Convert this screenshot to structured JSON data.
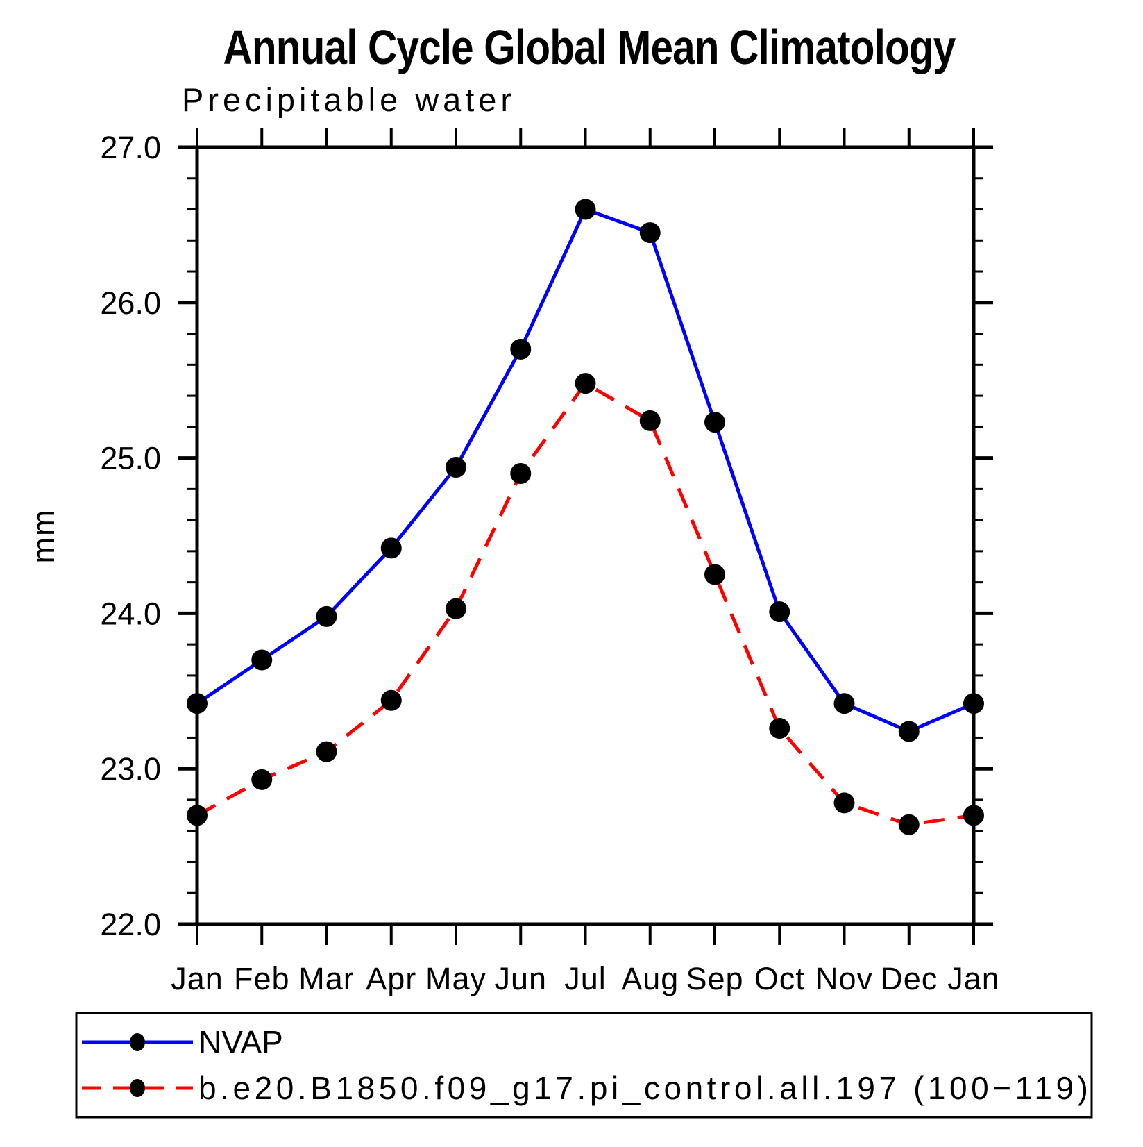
{
  "chart_data": {
    "type": "line",
    "title": "Annual Cycle Global Mean Climatology",
    "subtitle": "Precipitable water",
    "ylabel": "mm",
    "xlabel": "",
    "ylim": [
      22.0,
      27.0
    ],
    "ytick_step": 1.0,
    "yminor_step": 0.2,
    "ytick_labels": [
      "22.0",
      "23.0",
      "24.0",
      "25.0",
      "26.0",
      "27.0"
    ],
    "categories": [
      "Jan",
      "Feb",
      "Mar",
      "Apr",
      "May",
      "Jun",
      "Jul",
      "Aug",
      "Sep",
      "Oct",
      "Nov",
      "Dec",
      "Jan"
    ],
    "grid": false,
    "legend_position": "bottom",
    "marker_color": "#000000",
    "axis_color": "#000000",
    "background_color": "#ffffff",
    "series": [
      {
        "name": "NVAP",
        "color": "#0000ff",
        "line_style": "solid",
        "values": [
          23.42,
          23.7,
          23.98,
          24.42,
          24.94,
          25.7,
          26.6,
          26.45,
          25.23,
          24.01,
          23.42,
          23.24,
          23.42
        ]
      },
      {
        "name": "b.e20.B1850.f09_g17.pi_control.all.197 (100−119)",
        "color": "#ff0000",
        "line_style": "dashed",
        "values": [
          22.7,
          22.93,
          23.11,
          23.44,
          24.03,
          24.9,
          25.48,
          25.24,
          24.25,
          23.26,
          22.78,
          22.64,
          22.7
        ]
      }
    ]
  }
}
